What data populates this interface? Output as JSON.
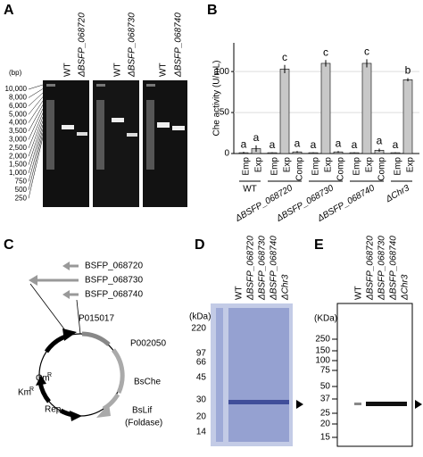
{
  "panels": [
    "A",
    "B",
    "C",
    "D",
    "E"
  ],
  "panel_a": {
    "unit": "(bp)",
    "ladder": [
      "10,000",
      "8,000",
      "6,000",
      "5,000",
      "4,000",
      "3,500",
      "3,000",
      "2,500",
      "2,000",
      "1,500",
      "1,000",
      "750",
      "500",
      "250"
    ],
    "lanes": [
      "WT",
      "ΔBSFP_068720",
      "WT",
      "ΔBSFP_068730",
      "WT",
      "ΔBSFP_068740"
    ]
  },
  "chart_data": {
    "type": "bar",
    "y_label": "Che activity (U/mL)",
    "ylim": [
      0,
      135
    ],
    "yticks": [
      0,
      50,
      100
    ],
    "grid": true,
    "color": "#c8c8c8",
    "groups": [
      {
        "label": "WT",
        "categories": [
          "Emp",
          "Exp"
        ]
      },
      {
        "label": "ΔBSFP_068720",
        "categories": [
          "Emp",
          "Exp",
          "Comp"
        ]
      },
      {
        "label": "ΔBSFP_068730",
        "categories": [
          "Emp",
          "Exp",
          "Comp"
        ]
      },
      {
        "label": "ΔBSFP_068740",
        "categories": [
          "Emp",
          "Exp",
          "Comp"
        ]
      },
      {
        "label": "ΔChr3",
        "categories": [
          "Emp",
          "Exp"
        ]
      }
    ],
    "values": [
      1,
      6,
      1,
      103,
      2,
      1,
      110,
      2,
      1,
      110,
      4,
      1,
      90
    ],
    "errors": [
      1,
      4,
      0.5,
      5,
      1,
      0.5,
      4,
      1,
      0.5,
      5,
      2,
      0.5,
      2
    ],
    "letters": [
      "a",
      "a",
      "a",
      "c",
      "a",
      "a",
      "c",
      "a",
      "a",
      "c",
      "a",
      "a",
      "b"
    ]
  },
  "panel_c": {
    "genes": [
      "BSFP_068720",
      "BSFP_068730",
      "BSFP_068740"
    ],
    "promoter1": "P015017",
    "promoter2": "P002050",
    "che": "BsChe",
    "lif": "BsLif",
    "foldase": "(Foldase)",
    "cm": "Cm",
    "km": "Km",
    "resistance": "R",
    "rep": "Rep"
  },
  "panel_d": {
    "unit": "(kDa)",
    "lanes": [
      "WT",
      "ΔBSFP_068720",
      "ΔBSFP_068730",
      "ΔBSFP_068740",
      "ΔChr3"
    ],
    "markers": [
      "220",
      "97",
      "66",
      "45",
      "30",
      "20",
      "14"
    ]
  },
  "panel_e": {
    "unit": "(KDa)",
    "lanes": [
      "WT",
      "ΔBSFP_068720",
      "ΔBSFP_068730",
      "ΔBSFP_068740",
      "ΔChr3"
    ],
    "markers": [
      "250",
      "150",
      "100",
      "75",
      "50",
      "37",
      "25",
      "20",
      "15"
    ]
  }
}
